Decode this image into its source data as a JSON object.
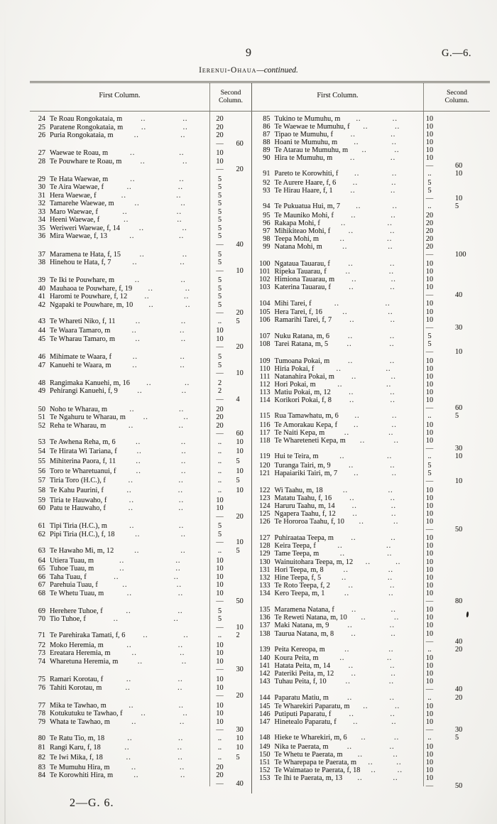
{
  "page": {
    "number": "9",
    "doc_ref": "G.—6.",
    "block_title": "Ierenui-Ohaua",
    "continued_suffix": "—continued.",
    "footer": "2—G. 6."
  },
  "table": {
    "first_col_header": "First Column.",
    "second_col_header_line1": "Second",
    "second_col_header_line2": "Column.",
    "leader": ".."
  },
  "left_rows": [
    {
      "no": "24",
      "name": "Te Roau Rongokataia, m",
      "v": "20"
    },
    {
      "no": "25",
      "name": "Paratene Rongokataia, m",
      "v": "20"
    },
    {
      "no": "26",
      "name": "Puria Rongokataia, m",
      "v": "20"
    },
    {
      "sum": "60"
    },
    {
      "gap": true
    },
    {
      "no": "27",
      "name": "Waewae te Roau, m",
      "v": "10"
    },
    {
      "no": "28",
      "name": "Te Pouwhare te Roau, m",
      "v": "10"
    },
    {
      "sum": "20"
    },
    {
      "gap": true
    },
    {
      "no": "29",
      "name": "Te Hata Waewae, m",
      "v": "5"
    },
    {
      "no": "30",
      "name": "Te Aira Waewae, f",
      "v": "5"
    },
    {
      "no": "31",
      "name": "Hera Waewae, f",
      "v": "5"
    },
    {
      "no": "32",
      "name": "Tamarehe Waewae, m",
      "v": "5"
    },
    {
      "no": "33",
      "name": "Maro Waewae, f",
      "v": "5"
    },
    {
      "no": "34",
      "name": "Heeni Waewae, f",
      "v": "5"
    },
    {
      "no": "35",
      "name": "Weriweri Waewae, f, 14",
      "v": "5"
    },
    {
      "no": "36",
      "name": "Mira Waewae, f, 13",
      "v": "5"
    },
    {
      "sum": "40"
    },
    {
      "gap": true
    },
    {
      "no": "37",
      "name": "Maramena te Hata, f, 15",
      "v": "5"
    },
    {
      "no": "38",
      "name": "Hinehou te Hata, f, 7",
      "v": "5"
    },
    {
      "sum": "10"
    },
    {
      "gap": true
    },
    {
      "no": "39",
      "name": "Te Iki te Pouwhare, m",
      "v": "5"
    },
    {
      "no": "40",
      "name": "Mauhaoa te Pouwhare, f, 19",
      "v": "5"
    },
    {
      "no": "41",
      "name": "Haromi te Pouwhare, f, 12",
      "v": "5"
    },
    {
      "no": "42",
      "name": "Ngapaki te Pouwhare, m, 10",
      "v": "5"
    },
    {
      "sum": "20"
    },
    {
      "no": "43",
      "name": "Te Whareti Niko, f, 11",
      "v": "..",
      "tv": "5"
    },
    {
      "gap": true
    },
    {
      "no": "44",
      "name": "Te Waara Tamaro, m",
      "v": "10"
    },
    {
      "no": "45",
      "name": "Te Wharau Tamaro, m",
      "v": "10"
    },
    {
      "sum": "20"
    },
    {
      "gap": true
    },
    {
      "no": "46",
      "name": "Mihimate te Waara, f",
      "v": "5"
    },
    {
      "no": "47",
      "name": "Kanuehi te Waara, m",
      "v": "5"
    },
    {
      "sum": "10"
    },
    {
      "gap": true
    },
    {
      "no": "48",
      "name": "Rangimaka Kanuehi, m, 16",
      "v": "2"
    },
    {
      "no": "49",
      "name": "Pehirangi Kanuehi, f, 9",
      "v": "2"
    },
    {
      "sum": "4"
    },
    {
      "gap": true
    },
    {
      "no": "50",
      "name": "Noho te Wharau, m",
      "v": "20"
    },
    {
      "no": "51",
      "name": "Te Ngahuru te Wharau, m",
      "v": "20"
    },
    {
      "no": "52",
      "name": "Reha te Wharau, m",
      "v": "20"
    },
    {
      "sum": "60"
    },
    {
      "no": "53",
      "name": "Te Awhena Reha, m, 6",
      "v": "..",
      "tv": "10"
    },
    {
      "gap": true
    },
    {
      "no": "54",
      "name": "Te Hirata Wi Tariana, f",
      "v": "..",
      "tv": "10"
    },
    {
      "gap": true
    },
    {
      "no": "55",
      "name": "Mihiterina Paora, f, 11",
      "v": "..",
      "tv": "5"
    },
    {
      "gap": true
    },
    {
      "no": "56",
      "name": "Toro te Wharetuanui, f",
      "v": "..",
      "tv": "10"
    },
    {
      "gap": true
    },
    {
      "no": "57",
      "name": "Tiria Toro (H.C.), f",
      "v": "..",
      "tv": "5"
    },
    {
      "gap": true
    },
    {
      "no": "58",
      "name": "Te Kahu Paurini, f",
      "v": "..",
      "tv": "10"
    },
    {
      "gap": true
    },
    {
      "no": "59",
      "name": "Tiria te Hauwaho, f",
      "v": "10"
    },
    {
      "no": "60",
      "name": "Patu te Hauwaho, f",
      "v": "10"
    },
    {
      "sum": "20"
    },
    {
      "gap": true
    },
    {
      "no": "61",
      "name": "Tipi Tiria (H.C.), m",
      "v": "5"
    },
    {
      "no": "62",
      "name": "Pipi Tiria (H.C.), f, 18",
      "v": "5"
    },
    {
      "sum": "10"
    },
    {
      "no": "63",
      "name": "Te Hawaho Mi, m, 12",
      "v": "..",
      "tv": "5"
    },
    {
      "gap": true
    },
    {
      "no": "64",
      "name": "Utiera Tuau, m",
      "v": "10"
    },
    {
      "no": "65",
      "name": "Tuhoe Tuau, m",
      "v": "10"
    },
    {
      "no": "66",
      "name": "Taha Tuau, f",
      "v": "10"
    },
    {
      "no": "67",
      "name": "Parehuia Tuau, f",
      "v": "10"
    },
    {
      "no": "68",
      "name": "Te Whetu Tuau, m",
      "v": "10"
    },
    {
      "sum": "50"
    },
    {
      "gap": true
    },
    {
      "no": "69",
      "name": "Herehere Tuhoe, f",
      "v": "5"
    },
    {
      "no": "70",
      "name": "Tio Tuhoe, f",
      "v": "5"
    },
    {
      "sum": "10"
    },
    {
      "no": "71",
      "name": "Te Parehiraka Tamati, f, 6",
      "v": "..",
      "tv": "2"
    },
    {
      "gap": true
    },
    {
      "no": "72",
      "name": "Moko Heremia, m",
      "v": "10"
    },
    {
      "no": "73",
      "name": "Ereatara Heremia, m",
      "v": "10"
    },
    {
      "no": "74",
      "name": "Wharetuna Heremia, m",
      "v": "10"
    },
    {
      "sum": "30"
    },
    {
      "gap": true
    },
    {
      "no": "75",
      "name": "Ramari Korotau, f",
      "v": "10"
    },
    {
      "no": "76",
      "name": "Tahiti Korotau, m",
      "v": "10"
    },
    {
      "sum": "20"
    },
    {
      "gap": true
    },
    {
      "no": "77",
      "name": "Mika te Tawhao, m",
      "v": "10"
    },
    {
      "no": "78",
      "name": "Kotukutuku te Tawhao, f",
      "v": "10"
    },
    {
      "no": "79",
      "name": "Whata te Tawhao, m",
      "v": "10"
    },
    {
      "sum": "30"
    },
    {
      "no": "80",
      "name": "Te Ratu Tio, m, 18",
      "v": "..",
      "tv": "10"
    },
    {
      "gap": true
    },
    {
      "no": "81",
      "name": "Rangi Karu, f, 18",
      "v": "..",
      "tv": "10"
    },
    {
      "gap": true
    },
    {
      "no": "82",
      "name": "Te Iwi Mika, f, 18",
      "v": "..",
      "tv": "5"
    },
    {
      "gap": true
    },
    {
      "no": "83",
      "name": "Te Mumuhu Hira, m",
      "v": "20"
    },
    {
      "no": "84",
      "name": "Te Korowhiti Hira, m",
      "v": "20"
    },
    {
      "sum": "40"
    }
  ],
  "right_rows": [
    {
      "no": "85",
      "name": "Tukino te Mumuhu, m",
      "v": "10"
    },
    {
      "no": "86",
      "name": "Te Waewae te Mumuhu, f",
      "v": "10"
    },
    {
      "no": "87",
      "name": "Tipao te Mumuhu, f",
      "v": "10"
    },
    {
      "no": "88",
      "name": "Hoani te Mumuhu, m",
      "v": "10"
    },
    {
      "no": "89",
      "name": "Te Atarau te Mumuhu, m",
      "v": "10"
    },
    {
      "no": "90",
      "name": "Hira te Mumuhu, m",
      "v": "10"
    },
    {
      "sum": "60"
    },
    {
      "no": "91",
      "name": "Pareto te Korowhiti, f",
      "v": "..",
      "tv": "10"
    },
    {
      "gap": true
    },
    {
      "no": "92",
      "name": "Te Aurere Haare, f, 6",
      "v": "5"
    },
    {
      "no": "93",
      "name": "Te Hirau Haare, f, 1",
      "v": "5"
    },
    {
      "sum": "10"
    },
    {
      "no": "94",
      "name": "Te Pukuatua Hui, m, 7",
      "v": "..",
      "tv": "5"
    },
    {
      "gap": true
    },
    {
      "no": "95",
      "name": "Te Mauniko Mohi, f",
      "v": "20"
    },
    {
      "no": "96",
      "name": "Rakapa Mohi, f",
      "v": "20"
    },
    {
      "no": "97",
      "name": "Mihikiteao Mohi, f",
      "v": "20"
    },
    {
      "no": "98",
      "name": "Teepa Mohi, m",
      "v": "20"
    },
    {
      "no": "99",
      "name": "Natana Mohi, m",
      "v": "20"
    },
    {
      "sum": "100"
    },
    {
      "gap": true
    },
    {
      "no": "100",
      "name": "Ngataua Tauarau, f",
      "v": "10"
    },
    {
      "no": "101",
      "name": "Ripeka Tauarau, f",
      "v": "10"
    },
    {
      "no": "102",
      "name": "Himiona Tauarau, m",
      "v": "10"
    },
    {
      "no": "103",
      "name": "Katerina Tauarau, f",
      "v": "10"
    },
    {
      "sum": "40"
    },
    {
      "gap": true
    },
    {
      "no": "104",
      "name": "Mihi Tarei, f",
      "v": "10"
    },
    {
      "no": "105",
      "name": "Hera Tarei, f, 16",
      "v": "10"
    },
    {
      "no": "106",
      "name": "Ramarihi Tarei, f, 7",
      "v": "10"
    },
    {
      "sum": "30"
    },
    {
      "gap": true
    },
    {
      "no": "107",
      "name": "Nuku Ratana, m, 6",
      "v": "5"
    },
    {
      "no": "108",
      "name": "Tarei Ratana, m, 5",
      "v": "5"
    },
    {
      "sum": "10"
    },
    {
      "gap": true
    },
    {
      "no": "109",
      "name": "Tumoana Pokai, m",
      "v": "10"
    },
    {
      "no": "110",
      "name": "Hiria Pokai, f",
      "v": "10"
    },
    {
      "no": "111",
      "name": "Natanahira Pokai, m",
      "v": "10"
    },
    {
      "no": "112",
      "name": "Hori Pokai, m",
      "v": "10"
    },
    {
      "no": "113",
      "name": "Matiu Pokai, m, 12",
      "v": "10"
    },
    {
      "no": "114",
      "name": "Korikori Pokai, f, 8",
      "v": "10"
    },
    {
      "sum": "60"
    },
    {
      "no": "115",
      "name": "Rua Tamawhatu, m, 6",
      "v": "..",
      "tv": "5"
    },
    {
      "gap": true
    },
    {
      "no": "116",
      "name": "Te Amorakau Kepa, f",
      "v": "10"
    },
    {
      "no": "117",
      "name": "Te Naiti Kepa, m",
      "v": "10"
    },
    {
      "no": "118",
      "name": "Te Whareteneti Kepa, m",
      "v": "10"
    },
    {
      "sum": "30"
    },
    {
      "no": "119",
      "name": "Hui te Teira, m",
      "v": "..",
      "tv": "10"
    },
    {
      "gap": true
    },
    {
      "no": "120",
      "name": "Turanga Tairi, m, 9",
      "v": "5"
    },
    {
      "no": "121",
      "name": "Hapaiariki Tairi, m, 7",
      "v": "5"
    },
    {
      "sum": "10"
    },
    {
      "gap": true
    },
    {
      "no": "122",
      "name": "Wi Taahu, m, 18",
      "v": "10"
    },
    {
      "no": "123",
      "name": "Matatu Taahu, f, 16",
      "v": "10"
    },
    {
      "no": "124",
      "name": "Haruru Taahu, m, 14",
      "v": "10"
    },
    {
      "no": "125",
      "name": "Ngapera Taahu, f, 12",
      "v": "10"
    },
    {
      "no": "126",
      "name": "Te Hororoa Taahu, f, 10",
      "v": "10"
    },
    {
      "sum": "50"
    },
    {
      "gap": true
    },
    {
      "no": "127",
      "name": "Puhiraataa Teepa, m",
      "v": "10"
    },
    {
      "no": "128",
      "name": "Keira Teepa, f",
      "v": "10"
    },
    {
      "no": "129",
      "name": "Tame Teepa, m",
      "v": "10"
    },
    {
      "no": "130",
      "name": "Wainuitohara Teepa, m, 12",
      "v": "10"
    },
    {
      "no": "131",
      "name": "Hori Teepa, m, 8",
      "v": "10"
    },
    {
      "no": "132",
      "name": "Hine Teepa, f, 5",
      "v": "10"
    },
    {
      "no": "133",
      "name": "Te Roto Teepa, f, 2",
      "v": "10"
    },
    {
      "no": "134",
      "name": "Kero Teepa, m, 1",
      "v": "10"
    },
    {
      "sum": "80"
    },
    {
      "gap": true
    },
    {
      "no": "135",
      "name": "Maramena Natana, f",
      "v": "10"
    },
    {
      "no": "136",
      "name": "Te Reweti Natana, m, 10",
      "v": "10"
    },
    {
      "no": "137",
      "name": "Maki Natana, m, 9",
      "v": "10"
    },
    {
      "no": "138",
      "name": "Taurua Natana, m, 8",
      "v": "10"
    },
    {
      "sum": "40"
    },
    {
      "no": "139",
      "name": "Peita Kereopa, m",
      "v": "..",
      "tv": "20"
    },
    {
      "gap": true
    },
    {
      "no": "140",
      "name": "Koura Peita, m",
      "v": "10"
    },
    {
      "no": "141",
      "name": "Hatata Peita, m, 14",
      "v": "10"
    },
    {
      "no": "142",
      "name": "Pateriki Peita, m, 12",
      "v": "10"
    },
    {
      "no": "143",
      "name": "Tuhau Peita, f, 10",
      "v": "10"
    },
    {
      "sum": "40"
    },
    {
      "no": "144",
      "name": "Paparatu Matiu, m",
      "v": "..",
      "tv": "20"
    },
    {
      "gap": true
    },
    {
      "no": "145",
      "name": "Te Wharekiri Paparatu, m",
      "v": "10"
    },
    {
      "no": "146",
      "name": "Putiputi Paparatu, f",
      "v": "10"
    },
    {
      "no": "147",
      "name": "Hinetealo Paparatu, f",
      "v": "10"
    },
    {
      "sum": "30"
    },
    {
      "no": "148",
      "name": "Hieke te Wharekiri, m, 6",
      "v": "..",
      "tv": "5"
    },
    {
      "gap": true
    },
    {
      "no": "149",
      "name": "Nika te Paerata, m",
      "v": "10"
    },
    {
      "no": "150",
      "name": "Te Whetu te Paerata, m",
      "v": "10"
    },
    {
      "no": "151",
      "name": "Te Wharepapa te Paerata, m",
      "v": "10"
    },
    {
      "no": "152",
      "name": "Te Waimatao te Paerata, f, 18",
      "v": "10"
    },
    {
      "no": "153",
      "name": "Te Ihi te Paerata, m, 13",
      "v": "10"
    },
    {
      "sum": "50"
    }
  ]
}
